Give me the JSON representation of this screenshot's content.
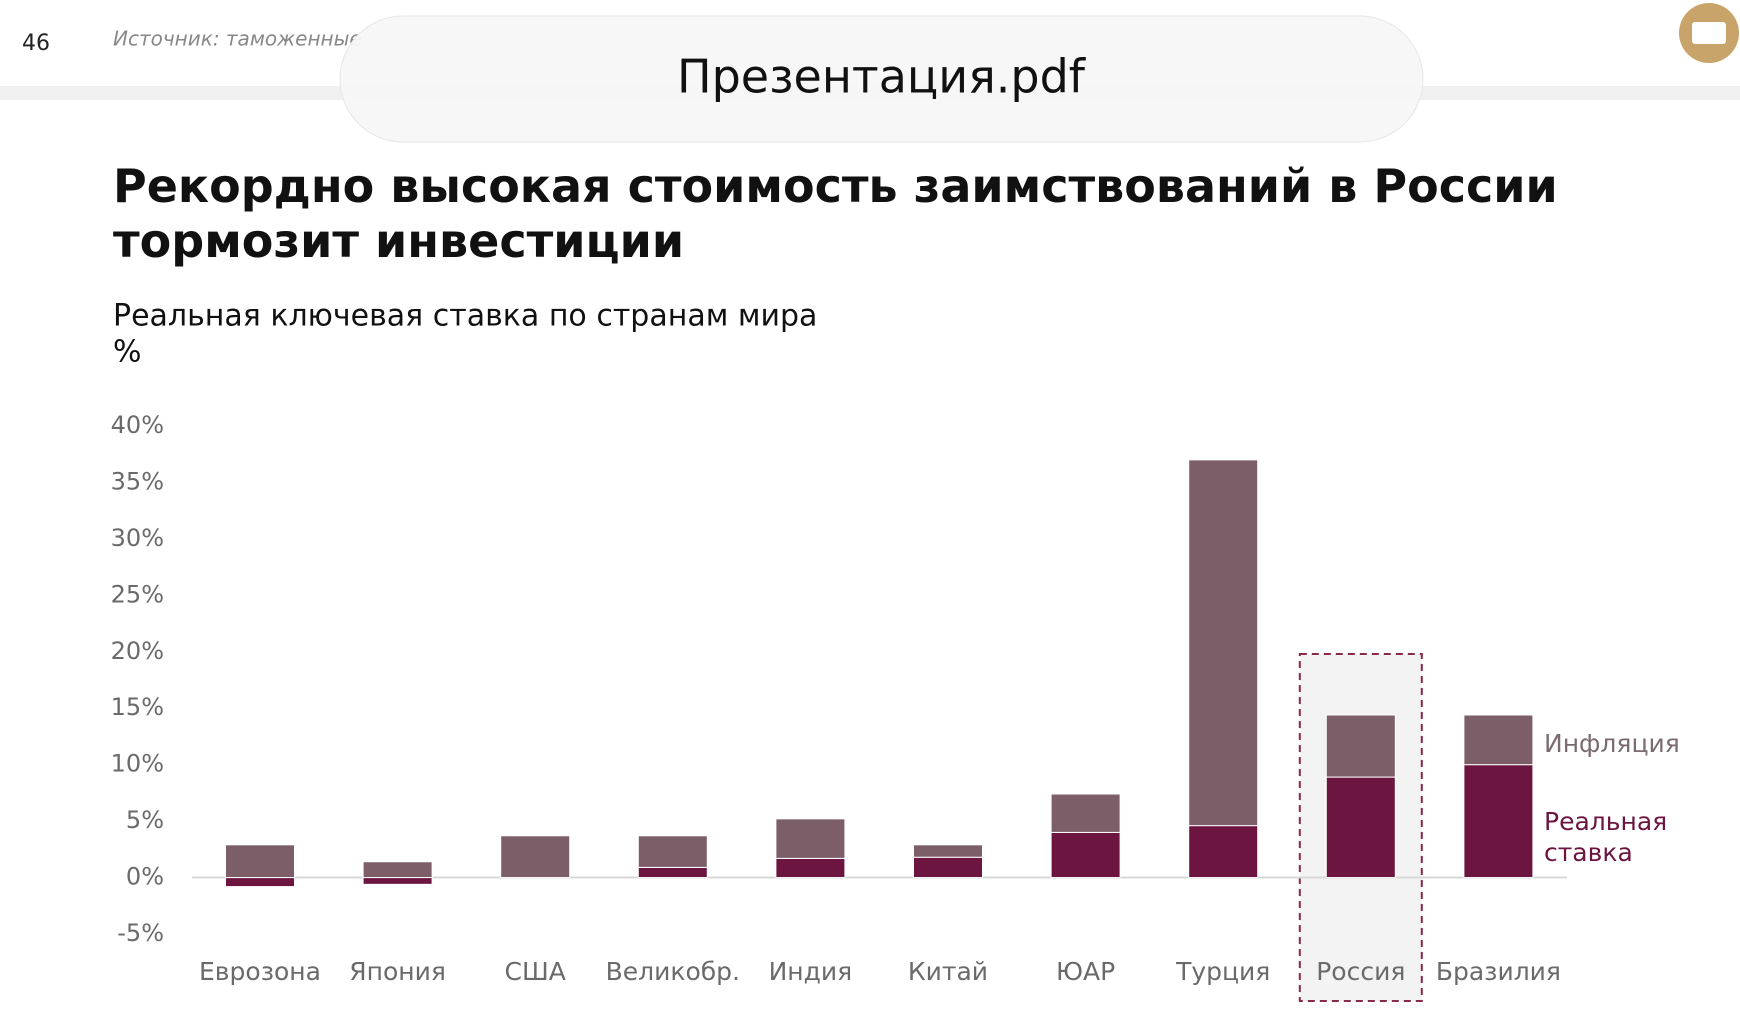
{
  "page_number": "46",
  "source": "Источник: таможенные",
  "overlay_title": "Презентация.pdf",
  "chart_data": {
    "type": "bar",
    "stacked": true,
    "title": "Рекордно высокая стоимость заимствований в России тормозит инвестиции",
    "subtitle": "Реальная ключевая ставка по странам мира",
    "y_label": "%",
    "categories": [
      "Еврозона",
      "Япония",
      "США",
      "Великобр.",
      "Индия",
      "Китай",
      "ЮАР",
      "Турция",
      "Россия",
      "Бразилия"
    ],
    "series": [
      {
        "name": "Реальная ставка",
        "color": "#6b1540",
        "values": [
          -0.8,
          -0.6,
          0,
          0.9,
          1.7,
          1.8,
          4.0,
          4.6,
          8.9,
          10.0
        ]
      },
      {
        "name": "Инфляция",
        "color": "#7b5e67",
        "values": [
          2.9,
          1.4,
          3.7,
          2.8,
          3.5,
          1.1,
          3.4,
          32.4,
          5.5,
          4.4
        ]
      }
    ],
    "highlight": "Россия",
    "ylim": [
      -5,
      40
    ],
    "yticks": [
      {
        "value": -5,
        "label": "-5%"
      },
      {
        "value": 0,
        "label": "0%"
      },
      {
        "value": 5,
        "label": "5%"
      },
      {
        "value": 10,
        "label": "10%"
      },
      {
        "value": 15,
        "label": "15%"
      },
      {
        "value": 20,
        "label": "20%"
      },
      {
        "value": 25,
        "label": "25%"
      },
      {
        "value": 30,
        "label": "30%"
      },
      {
        "value": 35,
        "label": "35%"
      },
      {
        "value": 40,
        "label": "40%"
      }
    ]
  }
}
